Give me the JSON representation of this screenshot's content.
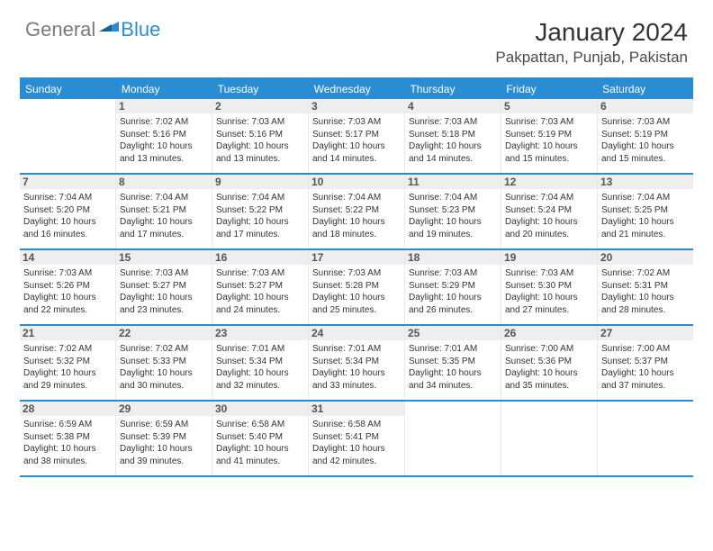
{
  "brand": {
    "general": "General",
    "blue": "Blue"
  },
  "header": {
    "title": "January 2024",
    "location": "Pakpattan, Punjab, Pakistan"
  },
  "colors": {
    "accent": "#2a8dd4",
    "weekday_bg": "#2a8dd4",
    "weekday_text": "#ffffff",
    "daynum_bg": "#eeeeee",
    "border": "#2a8dd4",
    "cell_border": "#e8e8e8",
    "body_text": "#333333",
    "logo_gray": "#7a7a7a"
  },
  "typography": {
    "title_fontsize": 28,
    "location_fontsize": 17,
    "weekday_fontsize": 12,
    "daynum_fontsize": 12,
    "body_fontsize": 10
  },
  "weekdays": [
    "Sunday",
    "Monday",
    "Tuesday",
    "Wednesday",
    "Thursday",
    "Friday",
    "Saturday"
  ],
  "weeks": [
    [
      {
        "n": "",
        "sr": "",
        "ss": "",
        "dl": ""
      },
      {
        "n": "1",
        "sr": "Sunrise: 7:02 AM",
        "ss": "Sunset: 5:16 PM",
        "dl": "Daylight: 10 hours and 13 minutes."
      },
      {
        "n": "2",
        "sr": "Sunrise: 7:03 AM",
        "ss": "Sunset: 5:16 PM",
        "dl": "Daylight: 10 hours and 13 minutes."
      },
      {
        "n": "3",
        "sr": "Sunrise: 7:03 AM",
        "ss": "Sunset: 5:17 PM",
        "dl": "Daylight: 10 hours and 14 minutes."
      },
      {
        "n": "4",
        "sr": "Sunrise: 7:03 AM",
        "ss": "Sunset: 5:18 PM",
        "dl": "Daylight: 10 hours and 14 minutes."
      },
      {
        "n": "5",
        "sr": "Sunrise: 7:03 AM",
        "ss": "Sunset: 5:19 PM",
        "dl": "Daylight: 10 hours and 15 minutes."
      },
      {
        "n": "6",
        "sr": "Sunrise: 7:03 AM",
        "ss": "Sunset: 5:19 PM",
        "dl": "Daylight: 10 hours and 15 minutes."
      }
    ],
    [
      {
        "n": "7",
        "sr": "Sunrise: 7:04 AM",
        "ss": "Sunset: 5:20 PM",
        "dl": "Daylight: 10 hours and 16 minutes."
      },
      {
        "n": "8",
        "sr": "Sunrise: 7:04 AM",
        "ss": "Sunset: 5:21 PM",
        "dl": "Daylight: 10 hours and 17 minutes."
      },
      {
        "n": "9",
        "sr": "Sunrise: 7:04 AM",
        "ss": "Sunset: 5:22 PM",
        "dl": "Daylight: 10 hours and 17 minutes."
      },
      {
        "n": "10",
        "sr": "Sunrise: 7:04 AM",
        "ss": "Sunset: 5:22 PM",
        "dl": "Daylight: 10 hours and 18 minutes."
      },
      {
        "n": "11",
        "sr": "Sunrise: 7:04 AM",
        "ss": "Sunset: 5:23 PM",
        "dl": "Daylight: 10 hours and 19 minutes."
      },
      {
        "n": "12",
        "sr": "Sunrise: 7:04 AM",
        "ss": "Sunset: 5:24 PM",
        "dl": "Daylight: 10 hours and 20 minutes."
      },
      {
        "n": "13",
        "sr": "Sunrise: 7:04 AM",
        "ss": "Sunset: 5:25 PM",
        "dl": "Daylight: 10 hours and 21 minutes."
      }
    ],
    [
      {
        "n": "14",
        "sr": "Sunrise: 7:03 AM",
        "ss": "Sunset: 5:26 PM",
        "dl": "Daylight: 10 hours and 22 minutes."
      },
      {
        "n": "15",
        "sr": "Sunrise: 7:03 AM",
        "ss": "Sunset: 5:27 PM",
        "dl": "Daylight: 10 hours and 23 minutes."
      },
      {
        "n": "16",
        "sr": "Sunrise: 7:03 AM",
        "ss": "Sunset: 5:27 PM",
        "dl": "Daylight: 10 hours and 24 minutes."
      },
      {
        "n": "17",
        "sr": "Sunrise: 7:03 AM",
        "ss": "Sunset: 5:28 PM",
        "dl": "Daylight: 10 hours and 25 minutes."
      },
      {
        "n": "18",
        "sr": "Sunrise: 7:03 AM",
        "ss": "Sunset: 5:29 PM",
        "dl": "Daylight: 10 hours and 26 minutes."
      },
      {
        "n": "19",
        "sr": "Sunrise: 7:03 AM",
        "ss": "Sunset: 5:30 PM",
        "dl": "Daylight: 10 hours and 27 minutes."
      },
      {
        "n": "20",
        "sr": "Sunrise: 7:02 AM",
        "ss": "Sunset: 5:31 PM",
        "dl": "Daylight: 10 hours and 28 minutes."
      }
    ],
    [
      {
        "n": "21",
        "sr": "Sunrise: 7:02 AM",
        "ss": "Sunset: 5:32 PM",
        "dl": "Daylight: 10 hours and 29 minutes."
      },
      {
        "n": "22",
        "sr": "Sunrise: 7:02 AM",
        "ss": "Sunset: 5:33 PM",
        "dl": "Daylight: 10 hours and 30 minutes."
      },
      {
        "n": "23",
        "sr": "Sunrise: 7:01 AM",
        "ss": "Sunset: 5:34 PM",
        "dl": "Daylight: 10 hours and 32 minutes."
      },
      {
        "n": "24",
        "sr": "Sunrise: 7:01 AM",
        "ss": "Sunset: 5:34 PM",
        "dl": "Daylight: 10 hours and 33 minutes."
      },
      {
        "n": "25",
        "sr": "Sunrise: 7:01 AM",
        "ss": "Sunset: 5:35 PM",
        "dl": "Daylight: 10 hours and 34 minutes."
      },
      {
        "n": "26",
        "sr": "Sunrise: 7:00 AM",
        "ss": "Sunset: 5:36 PM",
        "dl": "Daylight: 10 hours and 35 minutes."
      },
      {
        "n": "27",
        "sr": "Sunrise: 7:00 AM",
        "ss": "Sunset: 5:37 PM",
        "dl": "Daylight: 10 hours and 37 minutes."
      }
    ],
    [
      {
        "n": "28",
        "sr": "Sunrise: 6:59 AM",
        "ss": "Sunset: 5:38 PM",
        "dl": "Daylight: 10 hours and 38 minutes."
      },
      {
        "n": "29",
        "sr": "Sunrise: 6:59 AM",
        "ss": "Sunset: 5:39 PM",
        "dl": "Daylight: 10 hours and 39 minutes."
      },
      {
        "n": "30",
        "sr": "Sunrise: 6:58 AM",
        "ss": "Sunset: 5:40 PM",
        "dl": "Daylight: 10 hours and 41 minutes."
      },
      {
        "n": "31",
        "sr": "Sunrise: 6:58 AM",
        "ss": "Sunset: 5:41 PM",
        "dl": "Daylight: 10 hours and 42 minutes."
      },
      {
        "n": "",
        "sr": "",
        "ss": "",
        "dl": ""
      },
      {
        "n": "",
        "sr": "",
        "ss": "",
        "dl": ""
      },
      {
        "n": "",
        "sr": "",
        "ss": "",
        "dl": ""
      }
    ]
  ]
}
